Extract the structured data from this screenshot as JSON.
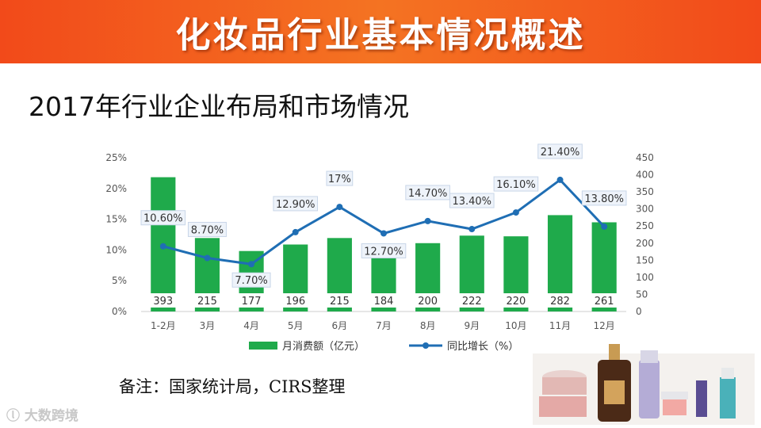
{
  "header": {
    "title": "化妆品行业基本情况概述"
  },
  "subtitle": "2017年行业企业布局和市场情况",
  "note": "备注：国家统计局，CIRS整理",
  "watermark": "大数跨境",
  "colors": {
    "bar": "#1faa4b",
    "line": "#1f6eb4",
    "banner": "#f24a1a"
  },
  "chart_data": {
    "type": "bar",
    "categories": [
      "1-2月",
      "3月",
      "4月",
      "5月",
      "6月",
      "7月",
      "8月",
      "9月",
      "10月",
      "11月",
      "12月"
    ],
    "series": [
      {
        "name": "月消费额（亿元）",
        "type": "bar",
        "axis": "right",
        "values": [
          393,
          215,
          177,
          196,
          215,
          184,
          200,
          222,
          220,
          282,
          261
        ],
        "labels": [
          "393",
          "215",
          "177",
          "196",
          "215",
          "184",
          "200",
          "222",
          "220",
          "282",
          "261"
        ]
      },
      {
        "name": "同比增长（%）",
        "type": "line",
        "axis": "left",
        "values": [
          10.6,
          8.7,
          7.7,
          12.9,
          17.0,
          12.7,
          14.7,
          13.4,
          16.1,
          21.4,
          13.8
        ],
        "labels": [
          "10.60%",
          "8.70%",
          "7.70%",
          "12.90%",
          "17%",
          "12.70%",
          "14.70%",
          "13.40%",
          "16.10%",
          "21.40%",
          "13.80%"
        ]
      }
    ],
    "y_left": {
      "ylim": [
        0,
        25
      ],
      "ticks": [
        "0%",
        "5%",
        "10%",
        "15%",
        "20%",
        "25%"
      ]
    },
    "y_right": {
      "ylim": [
        0,
        450
      ],
      "ticks": [
        "0",
        "50",
        "100",
        "150",
        "200",
        "250",
        "300",
        "350",
        "400",
        "450"
      ]
    },
    "legend_position": "bottom",
    "grid": false
  }
}
